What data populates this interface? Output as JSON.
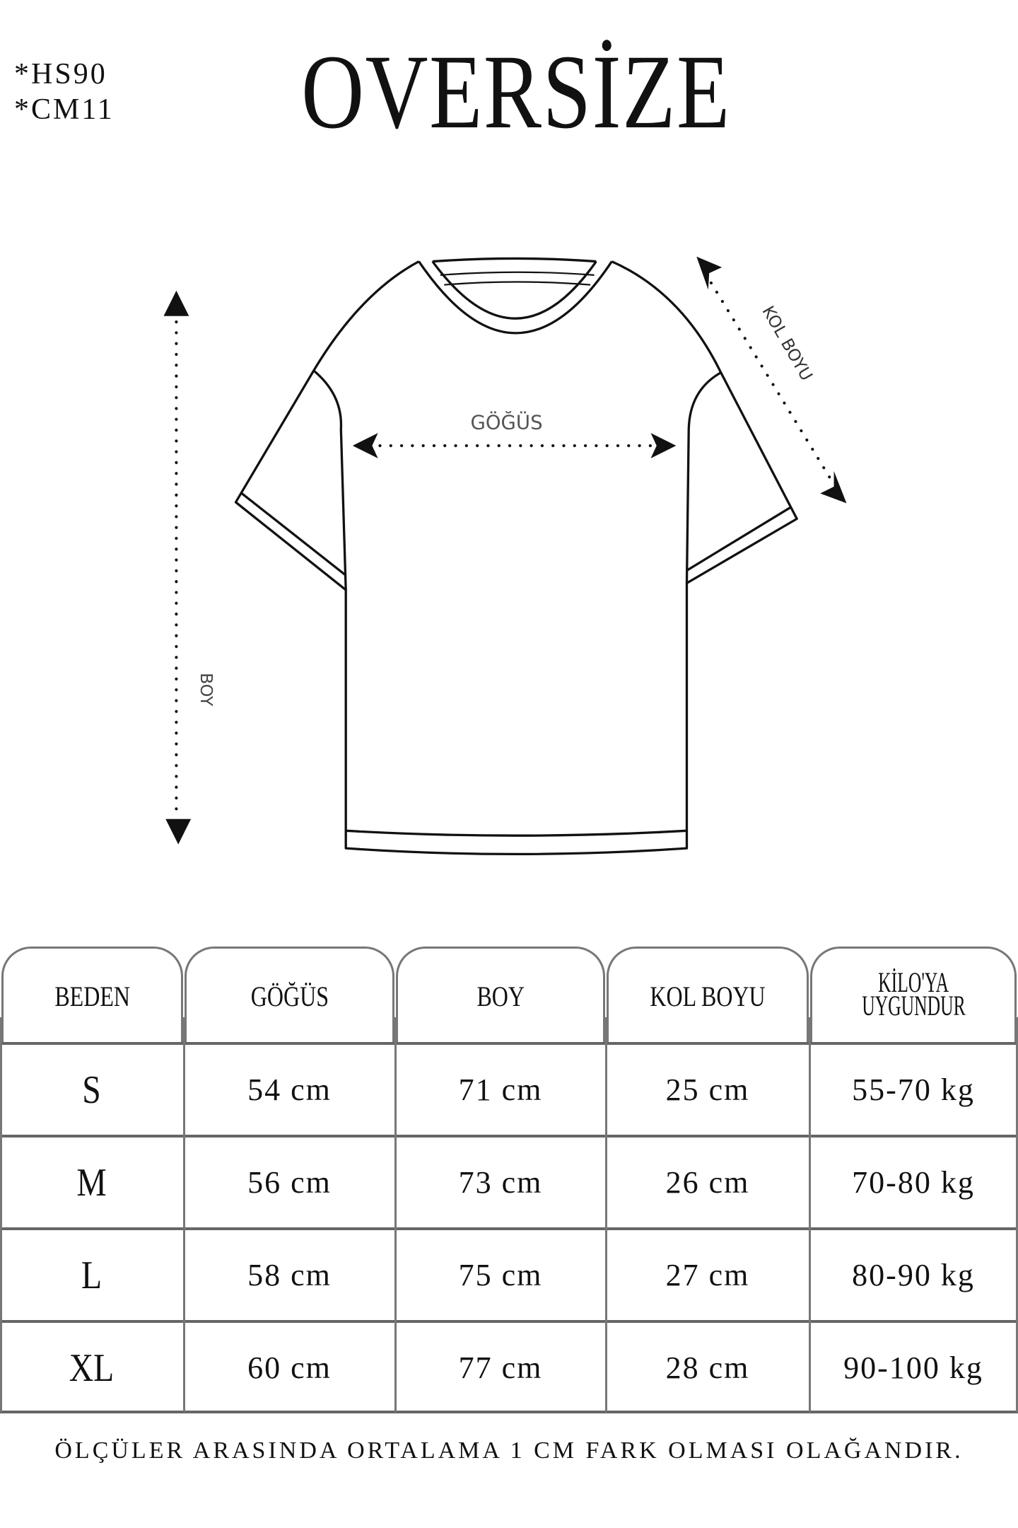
{
  "codes": [
    "*HS90",
    "*CM11"
  ],
  "title": "OVERSİZE",
  "diagram": {
    "chest_label": "GÖĞÜS",
    "length_label": "BOY",
    "sleeve_label": "KOL BOYU"
  },
  "table": {
    "headers": [
      "BEDEN",
      "GÖĞÜS",
      "BOY",
      "KOL BOYU",
      "KİLO'YA UYGUNDUR"
    ],
    "header_last_lines": [
      "KİLO'YA",
      "UYGUNDUR"
    ],
    "rows": [
      [
        "S",
        "54 cm",
        "71 cm",
        "25  cm",
        "55-70 kg"
      ],
      [
        "M",
        "56 cm",
        "73 cm",
        "26 cm",
        "70-80 kg"
      ],
      [
        "L",
        "58 cm",
        "75 cm",
        "27 cm",
        "80-90 kg"
      ],
      [
        "XL",
        "60 cm",
        "77 cm",
        "28 cm",
        "90-100 kg"
      ]
    ]
  },
  "footer": "ÖLÇÜLER ARASINDA ORTALAMA 1 CM FARK OLMASI OLAĞANDIR."
}
